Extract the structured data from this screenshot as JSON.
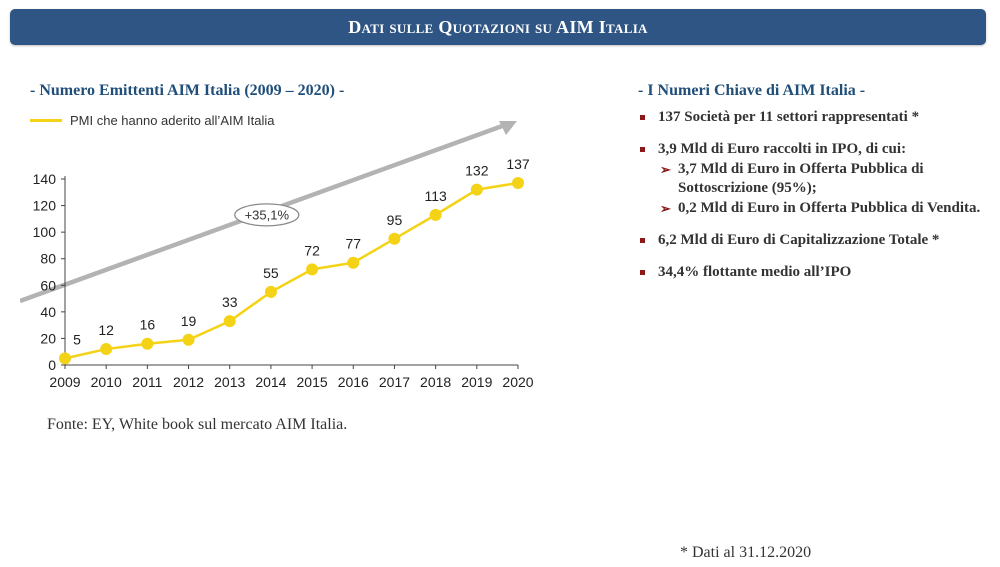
{
  "header": {
    "title": "Dati sulle Quotazioni su AIM Italia"
  },
  "left": {
    "title": "- Numero Emittenti AIM Italia (2009 – 2020) -",
    "source": "Fonte: EY, White book sul mercato AIM Italia."
  },
  "right": {
    "title": "- I Numeri Chiave di AIM Italia -",
    "bullets": [
      {
        "text": "137 Società per 11 settori rappresentati *"
      },
      {
        "text": "3,9 Mld di Euro raccolti in IPO, di cui:",
        "sub": [
          "3,7 Mld di Euro in Offerta Pubblica di Sottoscrizione (95%);",
          "0,2 Mld di Euro in Offerta Pubblica di Vendita."
        ]
      },
      {
        "text": "6,2 Mld di Euro di Capitalizzazione Totale *"
      },
      {
        "text": "34,4% flottante medio all’IPO"
      }
    ],
    "footnote": "* Dati al 31.12.2020"
  },
  "chart_data": {
    "type": "line",
    "categories": [
      "2009",
      "2010",
      "2011",
      "2012",
      "2013",
      "2014",
      "2015",
      "2016",
      "2017",
      "2018",
      "2019",
      "2020"
    ],
    "series": [
      {
        "name": "PMI che hanno aderito all’AIM Italia",
        "values": [
          5,
          12,
          16,
          19,
          33,
          55,
          72,
          77,
          95,
          113,
          132,
          137
        ],
        "color": "#f4d316"
      }
    ],
    "ylim": [
      0,
      140
    ],
    "yticks": [
      0,
      20,
      40,
      60,
      80,
      100,
      120,
      140
    ],
    "annotation": "+35,1%",
    "legend_position": "top-left",
    "grid": false,
    "arrow_color": "#b3b3b3"
  }
}
